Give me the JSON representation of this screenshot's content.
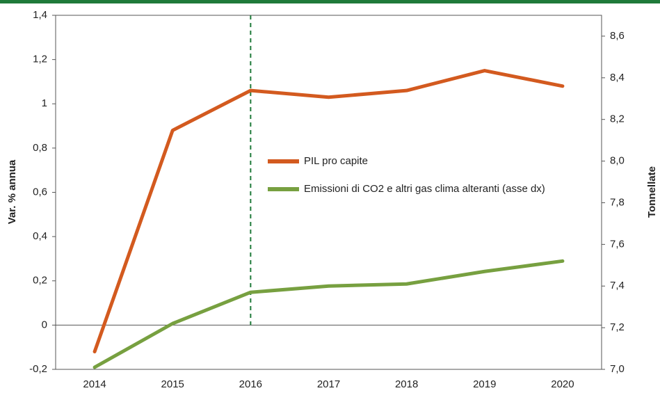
{
  "chart_data": {
    "type": "line",
    "y_label": "Var. % annua",
    "y2_label": "Tonnellate",
    "categories": [
      "2014",
      "2015",
      "2016",
      "2017",
      "2018",
      "2019",
      "2020"
    ],
    "series": [
      {
        "name": "PIL pro capite",
        "color": "#d35a1f",
        "values": [
          -0.12,
          0.88,
          1.06,
          1.03,
          1.06,
          1.15,
          1.08
        ]
      },
      {
        "name": "Emissioni di CO2 e altri gas clima alteranti (asse dx)",
        "color": "#77a040",
        "axis": "y2",
        "values": [
          7.01,
          7.22,
          7.37,
          7.4,
          7.41,
          7.47,
          7.52
        ]
      }
    ],
    "ylim": [
      -0.2,
      1.4
    ],
    "yticks": [
      {
        "value": -0.2,
        "label": "-0,2"
      },
      0,
      {
        "value": 0.2,
        "label": "0,2"
      },
      {
        "value": 0.4,
        "label": "0,4"
      },
      {
        "value": 0.6,
        "label": "0,6"
      },
      {
        "value": 0.8,
        "label": "0,8"
      },
      1,
      {
        "value": 1.2,
        "label": "1,2"
      },
      {
        "value": 1.4,
        "label": "1,4"
      }
    ],
    "y2lim": [
      7.0,
      8.7
    ],
    "y2ticks": [
      {
        "value": 7.0,
        "label": "7,0"
      },
      {
        "value": 7.2,
        "label": "7,2"
      },
      {
        "value": 7.4,
        "label": "7,4"
      },
      {
        "value": 7.6,
        "label": "7,6"
      },
      {
        "value": 7.8,
        "label": "7,8"
      },
      {
        "value": 8.0,
        "label": "8,0"
      },
      {
        "value": 8.2,
        "label": "8,2"
      },
      {
        "value": 8.4,
        "label": "8,4"
      },
      {
        "value": 8.6,
        "label": "8,6"
      }
    ],
    "vline": "2016",
    "legend": "center"
  }
}
